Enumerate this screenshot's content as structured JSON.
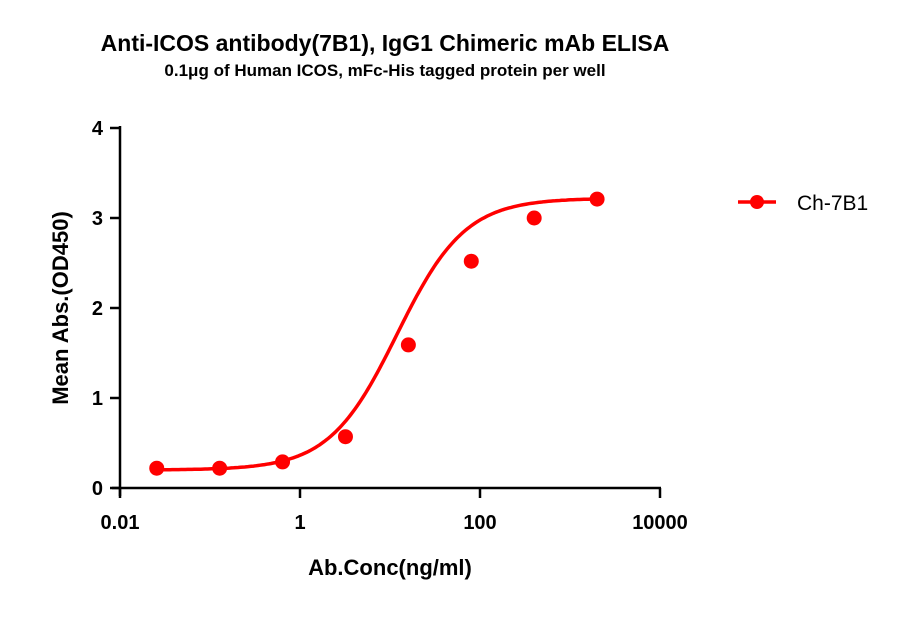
{
  "chart_data": {
    "type": "line",
    "title": "Anti-ICOS antibody(7B1), IgG1 Chimeric mAb ELISA",
    "subtitle": "0.1μg of Human ICOS, mFc-His tagged protein per well",
    "xlabel": "Ab.Conc(ng/ml)",
    "ylabel": "Mean Abs.(OD450)",
    "xscale": "log",
    "xlim": [
      0.01,
      10000
    ],
    "ylim": [
      0,
      4
    ],
    "xticks": [
      "0.01",
      "1",
      "100",
      "10000"
    ],
    "yticks": [
      "0",
      "1",
      "2",
      "3",
      "4"
    ],
    "grid": false,
    "legend_position": "right",
    "series": [
      {
        "name": "Ch-7B1",
        "color": "#ff0000",
        "x": [
          0.0256,
          0.128,
          0.64,
          3.2,
          16,
          80,
          400,
          2000
        ],
        "y": [
          0.22,
          0.22,
          0.29,
          0.57,
          1.59,
          2.52,
          3.0,
          3.21
        ],
        "fit": "sigmoidal"
      }
    ]
  }
}
